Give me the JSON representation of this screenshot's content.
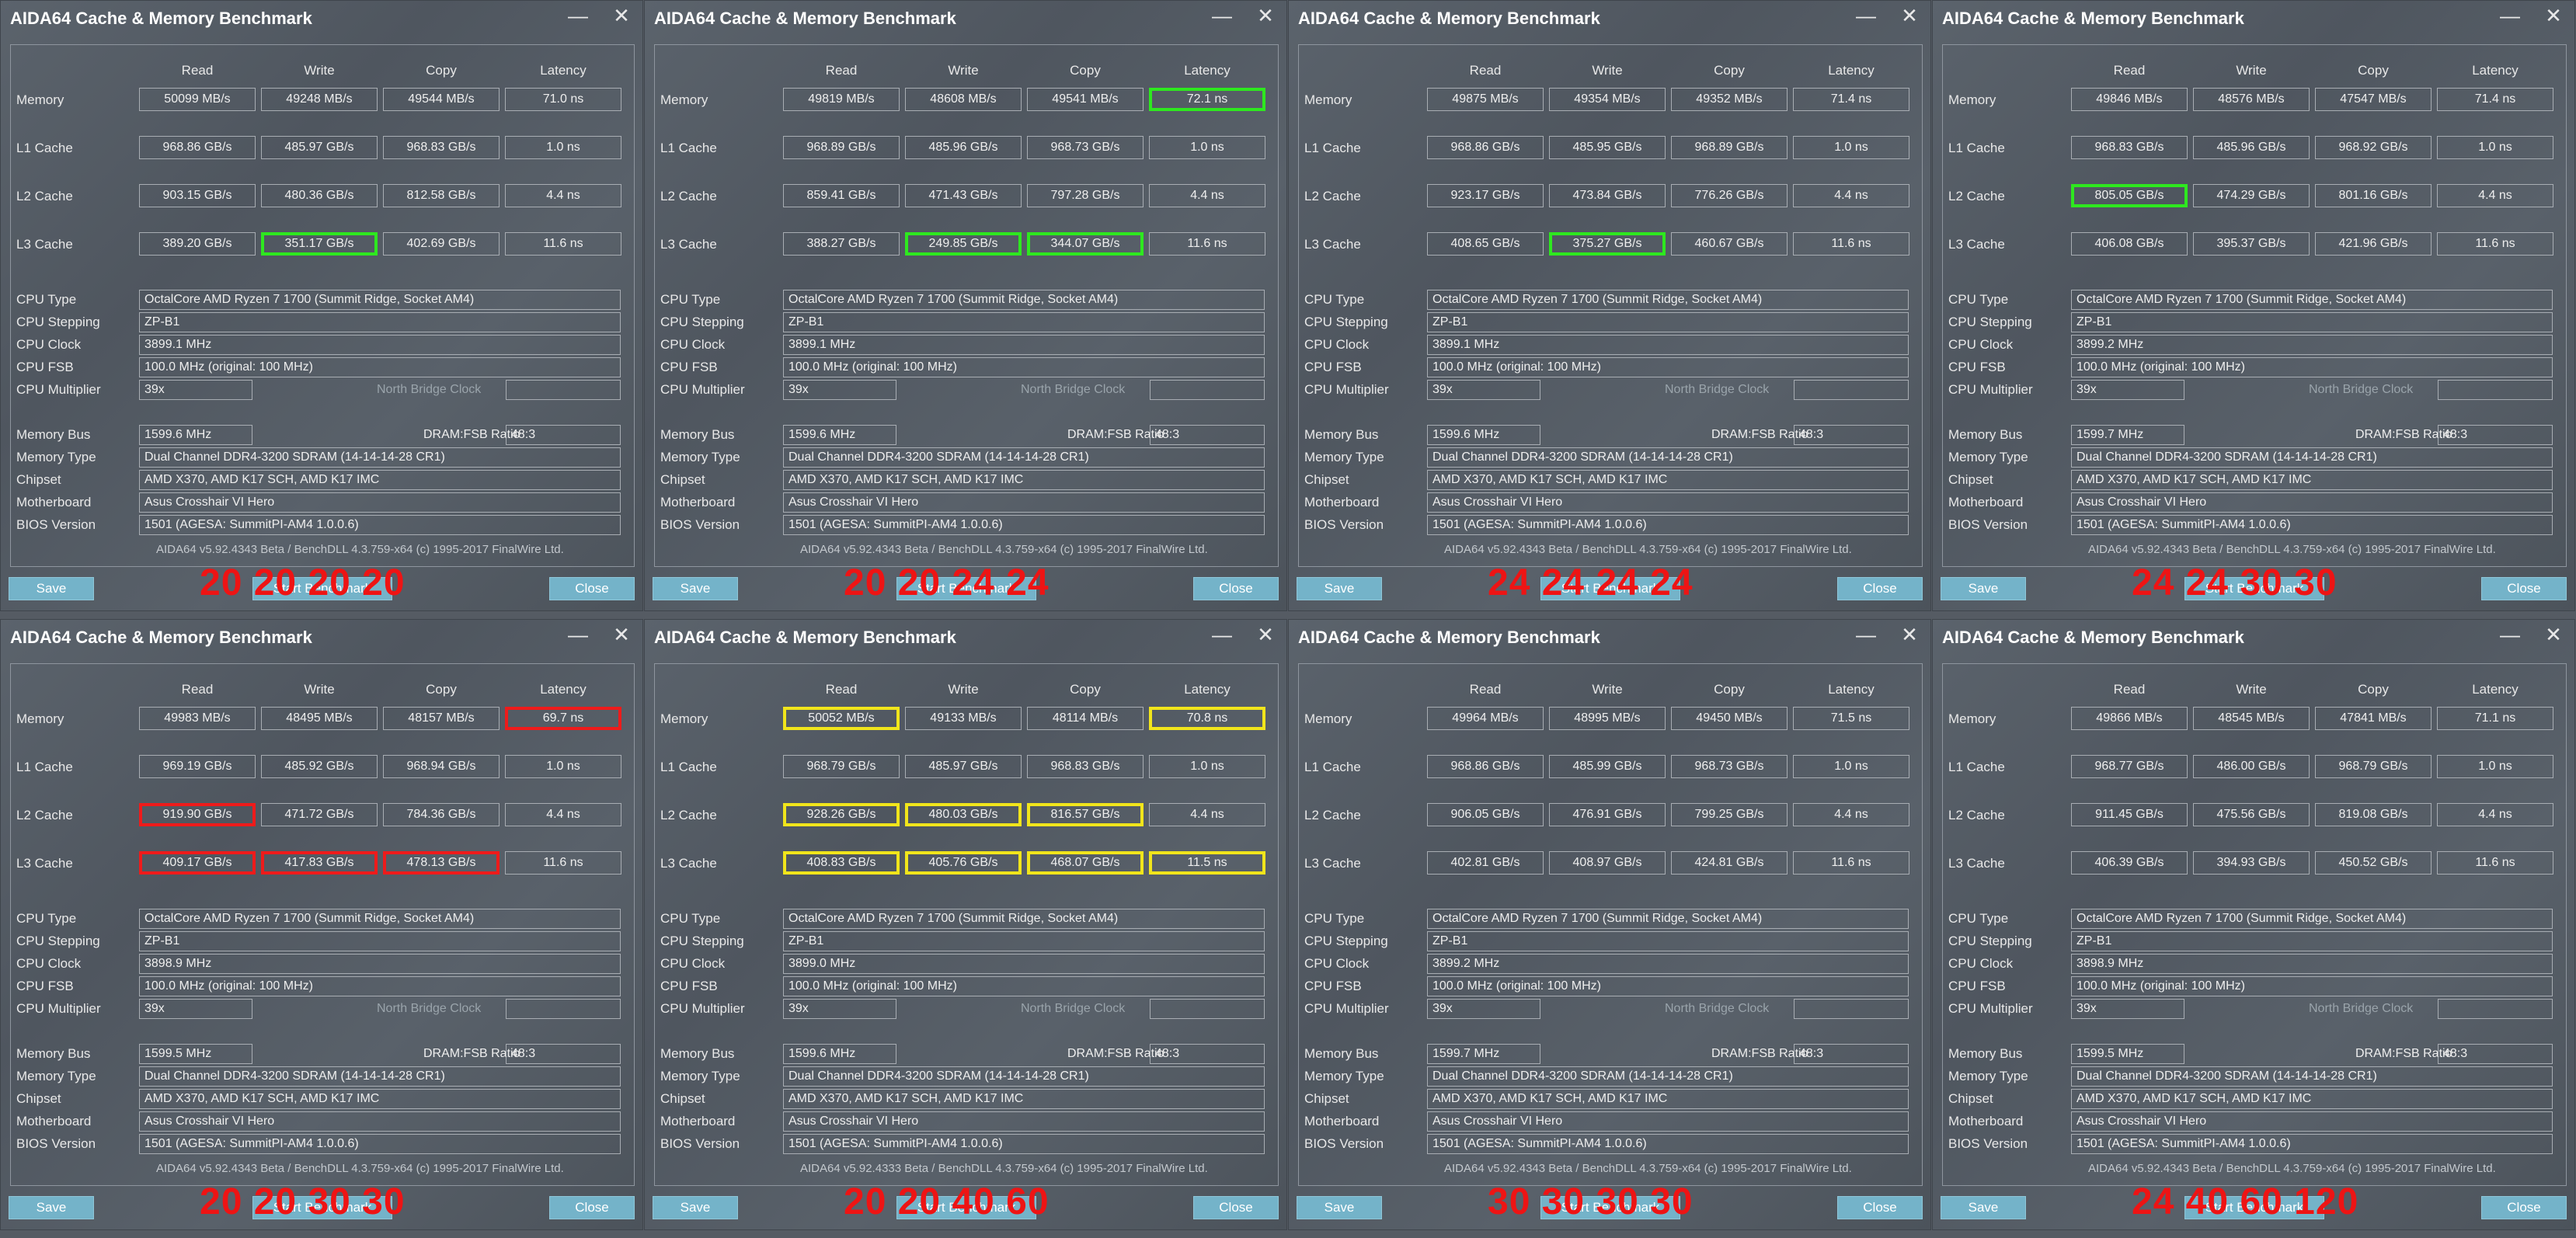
{
  "window_title": "AIDA64 Cache & Memory Benchmark",
  "minimize_glyph": "—",
  "close_glyph": "✕",
  "columns": [
    "Read",
    "Write",
    "Copy",
    "Latency"
  ],
  "row_labels": [
    "Memory",
    "L1 Cache",
    "L2 Cache",
    "L3 Cache"
  ],
  "info_labels": {
    "cpu_type": "CPU Type",
    "cpu_stepping": "CPU Stepping",
    "cpu_clock": "CPU Clock",
    "cpu_fsb": "CPU FSB",
    "cpu_multiplier": "CPU Multiplier",
    "memory_bus": "Memory Bus",
    "memory_type": "Memory Type",
    "chipset": "Chipset",
    "motherboard": "Motherboard",
    "bios_version": "BIOS Version"
  },
  "north_bridge_clock_label": "North Bridge Clock",
  "dram_fsb_label": "DRAM:FSB Ratio",
  "save_label": "Save",
  "start_label": "Start Benchmark",
  "close_label": "Close",
  "highlight_colors": {
    "green": "#2ee81f",
    "red": "#ee1b1b",
    "yellow": "#f1e51b"
  },
  "annotation_color": "#ee1414",
  "windows": [
    {
      "timings": "20 20 20 20",
      "results": [
        [
          "50099 MB/s",
          "49248 MB/s",
          "49544 MB/s",
          "71.0 ns"
        ],
        [
          "968.86 GB/s",
          "485.97 GB/s",
          "968.83 GB/s",
          "1.0 ns"
        ],
        [
          "903.15 GB/s",
          "480.36 GB/s",
          "812.58 GB/s",
          "4.4 ns"
        ],
        [
          "389.20 GB/s",
          "351.17 GB/s",
          "402.69 GB/s",
          "11.6 ns"
        ]
      ],
      "highlights": [
        {
          "row": 3,
          "col": 1,
          "color": "green"
        }
      ],
      "cpu_type": "OctalCore AMD Ryzen 7 1700  (Summit Ridge, Socket AM4)",
      "cpu_stepping": "ZP-B1",
      "cpu_clock": "3899.1 MHz",
      "cpu_fsb": "100.0 MHz  (original: 100 MHz)",
      "cpu_multiplier": "39x",
      "memory_bus": "1599.6 MHz",
      "dram_fsb": "48:3",
      "memory_type": "Dual Channel DDR4-3200 SDRAM  (14-14-14-28 CR1)",
      "chipset": "AMD X370, AMD K17 SCH, AMD K17 IMC",
      "motherboard": "Asus Crosshair VI Hero",
      "bios_version": "1501  (AGESA: SummitPI-AM4 1.0.0.6)",
      "footer": "AIDA64 v5.92.4343 Beta / BenchDLL 4.3.759-x64  (c) 1995-2017 FinalWire Ltd."
    },
    {
      "timings": "20 20 24 24",
      "results": [
        [
          "49819 MB/s",
          "48608 MB/s",
          "49541 MB/s",
          "72.1 ns"
        ],
        [
          "968.89 GB/s",
          "485.96 GB/s",
          "968.73 GB/s",
          "1.0 ns"
        ],
        [
          "859.41 GB/s",
          "471.43 GB/s",
          "797.28 GB/s",
          "4.4 ns"
        ],
        [
          "388.27 GB/s",
          "249.85 GB/s",
          "344.07 GB/s",
          "11.6 ns"
        ]
      ],
      "highlights": [
        {
          "row": 0,
          "col": 3,
          "color": "green"
        },
        {
          "row": 3,
          "col": 1,
          "color": "green"
        },
        {
          "row": 3,
          "col": 2,
          "color": "green"
        }
      ],
      "cpu_type": "OctalCore AMD Ryzen 7 1700  (Summit Ridge, Socket AM4)",
      "cpu_stepping": "ZP-B1",
      "cpu_clock": "3899.1 MHz",
      "cpu_fsb": "100.0 MHz  (original: 100 MHz)",
      "cpu_multiplier": "39x",
      "memory_bus": "1599.6 MHz",
      "dram_fsb": "48:3",
      "memory_type": "Dual Channel DDR4-3200 SDRAM  (14-14-14-28 CR1)",
      "chipset": "AMD X370, AMD K17 SCH, AMD K17 IMC",
      "motherboard": "Asus Crosshair VI Hero",
      "bios_version": "1501  (AGESA: SummitPI-AM4 1.0.0.6)",
      "footer": "AIDA64 v5.92.4343 Beta / BenchDLL 4.3.759-x64  (c) 1995-2017 FinalWire Ltd."
    },
    {
      "timings": "24 24 24 24",
      "results": [
        [
          "49875 MB/s",
          "49354 MB/s",
          "49352 MB/s",
          "71.4 ns"
        ],
        [
          "968.86 GB/s",
          "485.95 GB/s",
          "968.89 GB/s",
          "1.0 ns"
        ],
        [
          "923.17 GB/s",
          "473.84 GB/s",
          "776.26 GB/s",
          "4.4 ns"
        ],
        [
          "408.65 GB/s",
          "375.27 GB/s",
          "460.67 GB/s",
          "11.6 ns"
        ]
      ],
      "highlights": [
        {
          "row": 3,
          "col": 1,
          "color": "green"
        }
      ],
      "cpu_type": "OctalCore AMD Ryzen 7 1700  (Summit Ridge, Socket AM4)",
      "cpu_stepping": "ZP-B1",
      "cpu_clock": "3899.1 MHz",
      "cpu_fsb": "100.0 MHz  (original: 100 MHz)",
      "cpu_multiplier": "39x",
      "memory_bus": "1599.6 MHz",
      "dram_fsb": "48:3",
      "memory_type": "Dual Channel DDR4-3200 SDRAM  (14-14-14-28 CR1)",
      "chipset": "AMD X370, AMD K17 SCH, AMD K17 IMC",
      "motherboard": "Asus Crosshair VI Hero",
      "bios_version": "1501  (AGESA: SummitPI-AM4 1.0.0.6)",
      "footer": "AIDA64 v5.92.4343 Beta / BenchDLL 4.3.759-x64  (c) 1995-2017 FinalWire Ltd."
    },
    {
      "timings": "24 24 30 30",
      "results": [
        [
          "49846 MB/s",
          "48576 MB/s",
          "47547 MB/s",
          "71.4 ns"
        ],
        [
          "968.83 GB/s",
          "485.96 GB/s",
          "968.92 GB/s",
          "1.0 ns"
        ],
        [
          "805.05 GB/s",
          "474.29 GB/s",
          "801.16 GB/s",
          "4.4 ns"
        ],
        [
          "406.08 GB/s",
          "395.37 GB/s",
          "421.96 GB/s",
          "11.6 ns"
        ]
      ],
      "highlights": [
        {
          "row": 2,
          "col": 0,
          "color": "green"
        }
      ],
      "cpu_type": "OctalCore AMD Ryzen 7 1700  (Summit Ridge, Socket AM4)",
      "cpu_stepping": "ZP-B1",
      "cpu_clock": "3899.2 MHz",
      "cpu_fsb": "100.0 MHz  (original: 100 MHz)",
      "cpu_multiplier": "39x",
      "memory_bus": "1599.7 MHz",
      "dram_fsb": "48:3",
      "memory_type": "Dual Channel DDR4-3200 SDRAM  (14-14-14-28 CR1)",
      "chipset": "AMD X370, AMD K17 SCH, AMD K17 IMC",
      "motherboard": "Asus Crosshair VI Hero",
      "bios_version": "1501  (AGESA: SummitPI-AM4 1.0.0.6)",
      "footer": "AIDA64 v5.92.4343 Beta / BenchDLL 4.3.759-x64  (c) 1995-2017 FinalWire Ltd."
    },
    {
      "timings": "20 20 30 30",
      "results": [
        [
          "49983 MB/s",
          "48495 MB/s",
          "48157 MB/s",
          "69.7 ns"
        ],
        [
          "969.19 GB/s",
          "485.92 GB/s",
          "968.94 GB/s",
          "1.0 ns"
        ],
        [
          "919.90 GB/s",
          "471.72 GB/s",
          "784.36 GB/s",
          "4.4 ns"
        ],
        [
          "409.17 GB/s",
          "417.83 GB/s",
          "478.13 GB/s",
          "11.6 ns"
        ]
      ],
      "highlights": [
        {
          "row": 0,
          "col": 3,
          "color": "red"
        },
        {
          "row": 2,
          "col": 0,
          "color": "red"
        },
        {
          "row": 3,
          "col": 0,
          "color": "red"
        },
        {
          "row": 3,
          "col": 1,
          "color": "red"
        },
        {
          "row": 3,
          "col": 2,
          "color": "red"
        }
      ],
      "cpu_type": "OctalCore AMD Ryzen 7 1700  (Summit Ridge, Socket AM4)",
      "cpu_stepping": "ZP-B1",
      "cpu_clock": "3898.9 MHz",
      "cpu_fsb": "100.0 MHz  (original: 100 MHz)",
      "cpu_multiplier": "39x",
      "memory_bus": "1599.5 MHz",
      "dram_fsb": "48:3",
      "memory_type": "Dual Channel DDR4-3200 SDRAM  (14-14-14-28 CR1)",
      "chipset": "AMD X370, AMD K17 SCH, AMD K17 IMC",
      "motherboard": "Asus Crosshair VI Hero",
      "bios_version": "1501  (AGESA: SummitPI-AM4 1.0.0.6)",
      "footer": "AIDA64 v5.92.4343 Beta / BenchDLL 4.3.759-x64  (c) 1995-2017 FinalWire Ltd."
    },
    {
      "timings": "20 20 40 60",
      "results": [
        [
          "50052 MB/s",
          "49133 MB/s",
          "48114 MB/s",
          "70.8 ns"
        ],
        [
          "968.79 GB/s",
          "485.97 GB/s",
          "968.83 GB/s",
          "1.0 ns"
        ],
        [
          "928.26 GB/s",
          "480.03 GB/s",
          "816.57 GB/s",
          "4.4 ns"
        ],
        [
          "408.83 GB/s",
          "405.76 GB/s",
          "468.07 GB/s",
          "11.5 ns"
        ]
      ],
      "highlights": [
        {
          "row": 0,
          "col": 0,
          "color": "yellow"
        },
        {
          "row": 0,
          "col": 3,
          "color": "yellow"
        },
        {
          "row": 2,
          "col": 0,
          "color": "yellow"
        },
        {
          "row": 2,
          "col": 1,
          "color": "yellow"
        },
        {
          "row": 2,
          "col": 2,
          "color": "yellow"
        },
        {
          "row": 3,
          "col": 0,
          "color": "yellow"
        },
        {
          "row": 3,
          "col": 1,
          "color": "yellow"
        },
        {
          "row": 3,
          "col": 2,
          "color": "yellow"
        },
        {
          "row": 3,
          "col": 3,
          "color": "yellow"
        }
      ],
      "cpu_type": "OctalCore AMD Ryzen 7 1700  (Summit Ridge, Socket AM4)",
      "cpu_stepping": "ZP-B1",
      "cpu_clock": "3899.0 MHz",
      "cpu_fsb": "100.0 MHz  (original: 100 MHz)",
      "cpu_multiplier": "39x",
      "memory_bus": "1599.6 MHz",
      "dram_fsb": "48:3",
      "memory_type": "Dual Channel DDR4-3200 SDRAM  (14-14-14-28 CR1)",
      "chipset": "AMD X370, AMD K17 SCH, AMD K17 IMC",
      "motherboard": "Asus Crosshair VI Hero",
      "bios_version": "1501  (AGESA: SummitPI-AM4 1.0.0.6)",
      "footer": "AIDA64 v5.92.4333 Beta / BenchDLL 4.3.759-x64  (c) 1995-2017 FinalWire Ltd."
    },
    {
      "timings": "30 30 30 30",
      "results": [
        [
          "49964 MB/s",
          "48995 MB/s",
          "49450 MB/s",
          "71.5 ns"
        ],
        [
          "968.86 GB/s",
          "485.99 GB/s",
          "968.73 GB/s",
          "1.0 ns"
        ],
        [
          "906.05 GB/s",
          "476.91 GB/s",
          "799.25 GB/s",
          "4.4 ns"
        ],
        [
          "402.81 GB/s",
          "408.97 GB/s",
          "424.81 GB/s",
          "11.6 ns"
        ]
      ],
      "highlights": [],
      "cpu_type": "OctalCore AMD Ryzen 7 1700  (Summit Ridge, Socket AM4)",
      "cpu_stepping": "ZP-B1",
      "cpu_clock": "3899.2 MHz",
      "cpu_fsb": "100.0 MHz  (original: 100 MHz)",
      "cpu_multiplier": "39x",
      "memory_bus": "1599.7 MHz",
      "dram_fsb": "48:3",
      "memory_type": "Dual Channel DDR4-3200 SDRAM  (14-14-14-28 CR1)",
      "chipset": "AMD X370, AMD K17 SCH, AMD K17 IMC",
      "motherboard": "Asus Crosshair VI Hero",
      "bios_version": "1501  (AGESA: SummitPI-AM4 1.0.0.6)",
      "footer": "AIDA64 v5.92.4343 Beta / BenchDLL 4.3.759-x64  (c) 1995-2017 FinalWire Ltd."
    },
    {
      "timings": "24 40 60 120",
      "results": [
        [
          "49866 MB/s",
          "48545 MB/s",
          "47841 MB/s",
          "71.1 ns"
        ],
        [
          "968.77 GB/s",
          "486.00 GB/s",
          "968.79 GB/s",
          "1.0 ns"
        ],
        [
          "911.45 GB/s",
          "475.56 GB/s",
          "819.08 GB/s",
          "4.4 ns"
        ],
        [
          "406.39 GB/s",
          "394.93 GB/s",
          "450.52 GB/s",
          "11.6 ns"
        ]
      ],
      "highlights": [],
      "cpu_type": "OctalCore AMD Ryzen 7 1700  (Summit Ridge, Socket AM4)",
      "cpu_stepping": "ZP-B1",
      "cpu_clock": "3898.9 MHz",
      "cpu_fsb": "100.0 MHz  (original: 100 MHz)",
      "cpu_multiplier": "39x",
      "memory_bus": "1599.5 MHz",
      "dram_fsb": "48:3",
      "memory_type": "Dual Channel DDR4-3200 SDRAM  (14-14-14-28 CR1)",
      "chipset": "AMD X370, AMD K17 SCH, AMD K17 IMC",
      "motherboard": "Asus Crosshair VI Hero",
      "bios_version": "1501  (AGESA: SummitPI-AM4 1.0.0.6)",
      "footer": "AIDA64 v5.92.4343 Beta / BenchDLL 4.3.759-x64  (c) 1995-2017 FinalWire Ltd."
    }
  ]
}
